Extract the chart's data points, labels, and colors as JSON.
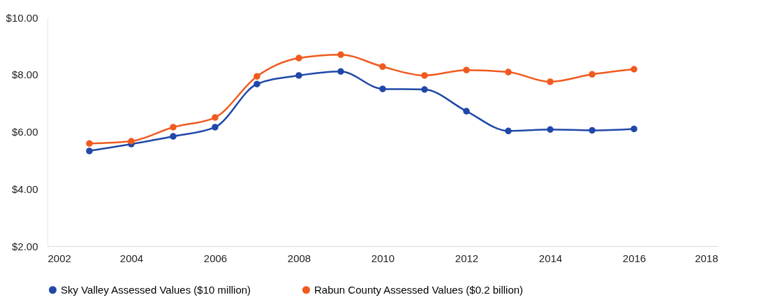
{
  "chart_data": {
    "type": "line",
    "x": [
      2003,
      2004,
      2005,
      2006,
      2007,
      2008,
      2009,
      2010,
      2011,
      2012,
      2013,
      2014,
      2015,
      2016
    ],
    "series": [
      {
        "name": "Sky Valley Assessed Values ($10 million)",
        "color": "#1f48a8",
        "values": [
          5.33,
          5.57,
          5.84,
          6.16,
          7.67,
          7.97,
          8.11,
          7.5,
          7.48,
          6.72,
          6.03,
          6.08,
          6.05,
          6.1
        ]
      },
      {
        "name": "Rabun County Assessed Values ($0.2 billion)",
        "color": "#f05a1e",
        "values": [
          5.59,
          5.67,
          6.16,
          6.5,
          7.94,
          8.58,
          8.7,
          8.28,
          7.97,
          8.16,
          8.09,
          7.75,
          8.01,
          8.19
        ]
      }
    ],
    "xlim": [
      2002,
      2018
    ],
    "xticks": [
      2002,
      2004,
      2006,
      2008,
      2010,
      2012,
      2014,
      2016,
      2018
    ],
    "ylim": [
      2,
      10
    ],
    "yticks": [
      {
        "value": 2,
        "label": "$2.00"
      },
      {
        "value": 4,
        "label": "$4.00"
      },
      {
        "value": 6,
        "label": "$6.00"
      },
      {
        "value": 8,
        "label": "$8.00"
      },
      {
        "value": 10,
        "label": "$10.00"
      }
    ],
    "marker": "circle",
    "legend": "bottom",
    "grid": false
  }
}
